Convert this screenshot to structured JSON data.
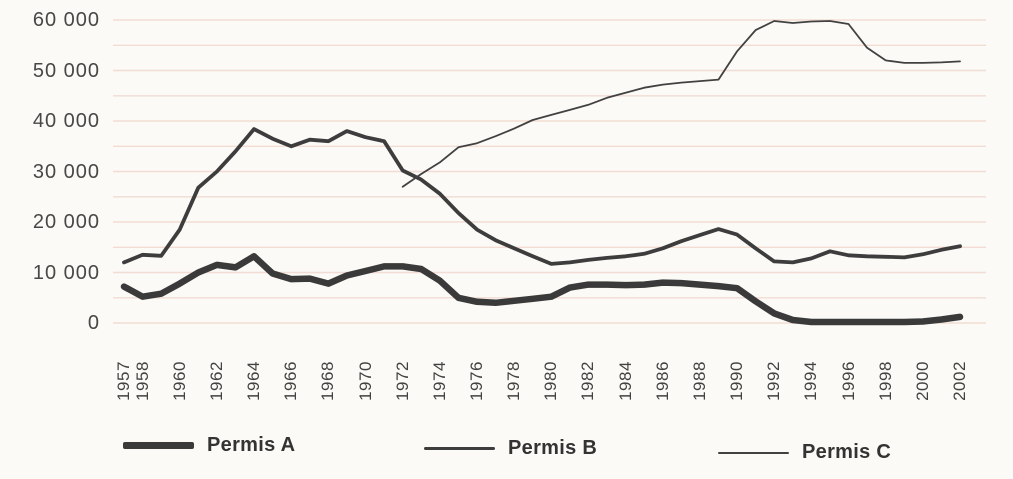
{
  "chart_data": {
    "type": "line",
    "title": "",
    "grid": true,
    "x_axis": {
      "first_year": 1957,
      "last_year": 2002,
      "tick_labels": [
        "1957",
        "1958",
        "1960",
        "1962",
        "1964",
        "1966",
        "1968",
        "1970",
        "1972",
        "1974",
        "1976",
        "1978",
        "1980",
        "1982",
        "1984",
        "1986",
        "1988",
        "1990",
        "1992",
        "1994",
        "1996",
        "1998",
        "2000",
        "2002"
      ]
    },
    "y_axis": {
      "min": 0,
      "max": 60000,
      "gridline_step": 5000,
      "ticks": [
        {
          "label": "60 000",
          "value": 60000
        },
        {
          "label": "50 000",
          "value": 50000
        },
        {
          "label": "40 000",
          "value": 40000
        },
        {
          "label": "30 000",
          "value": 30000
        },
        {
          "label": "20 000",
          "value": 20000
        },
        {
          "label": "10 000",
          "value": 10000
        },
        {
          "label": "0",
          "value": 0
        }
      ]
    },
    "legend": {
      "position": "bottom"
    },
    "series": [
      {
        "name": "Permis A",
        "color": "#3a3a3a",
        "line_width": 6.5,
        "years": [
          1957,
          1958,
          1959,
          1960,
          1961,
          1962,
          1963,
          1964,
          1965,
          1966,
          1967,
          1968,
          1969,
          1970,
          1971,
          1972,
          1973,
          1974,
          1975,
          1976,
          1977,
          1978,
          1979,
          1980,
          1981,
          1982,
          1983,
          1984,
          1985,
          1986,
          1987,
          1988,
          1989,
          1990,
          1991,
          1992,
          1993,
          1994,
          1995,
          1996,
          1997,
          1998,
          1999,
          2000,
          2001,
          2002
        ],
        "values": [
          7200,
          5200,
          5800,
          7800,
          10000,
          11500,
          11000,
          13200,
          9800,
          8700,
          8800,
          7800,
          9400,
          10300,
          11200,
          11200,
          10700,
          8400,
          5000,
          4200,
          4000,
          4400,
          4800,
          5200,
          7000,
          7600,
          7600,
          7500,
          7600,
          8000,
          7900,
          7600,
          7300,
          6900,
          4300,
          1900,
          600,
          200,
          200,
          200,
          200,
          200,
          200,
          300,
          700,
          1200
        ]
      },
      {
        "name": "Permis B",
        "color": "#3d3d3d",
        "line_width": 3.8,
        "years": [
          1957,
          1958,
          1959,
          1960,
          1961,
          1962,
          1963,
          1964,
          1965,
          1966,
          1967,
          1968,
          1969,
          1970,
          1971,
          1972,
          1973,
          1974,
          1975,
          1976,
          1977,
          1978,
          1979,
          1980,
          1981,
          1982,
          1983,
          1984,
          1985,
          1986,
          1987,
          1988,
          1989,
          1990,
          1991,
          1992,
          1993,
          1994,
          1995,
          1996,
          1997,
          1998,
          1999,
          2000,
          2001,
          2002
        ],
        "values": [
          12000,
          13500,
          13300,
          18500,
          26800,
          30000,
          34000,
          38400,
          36500,
          35000,
          36300,
          36000,
          38000,
          36800,
          36000,
          30200,
          28400,
          25600,
          21800,
          18500,
          16400,
          14800,
          13200,
          11700,
          12000,
          12500,
          12900,
          13200,
          13700,
          14800,
          16200,
          17400,
          18600,
          17500,
          14800,
          12200,
          12000,
          12800,
          14200,
          13400,
          13200,
          13100,
          13000,
          13600,
          14500,
          15200
        ]
      },
      {
        "name": "Permis C",
        "color": "#414141",
        "line_width": 1.8,
        "years": [
          1972,
          1973,
          1974,
          1975,
          1976,
          1977,
          1978,
          1979,
          1980,
          1981,
          1982,
          1983,
          1984,
          1985,
          1986,
          1987,
          1988,
          1989,
          1990,
          1991,
          1992,
          1993,
          1994,
          1995,
          1996,
          1997,
          1998,
          1999,
          2000,
          2001,
          2002
        ],
        "values": [
          27000,
          29500,
          31800,
          34800,
          35600,
          37000,
          38500,
          40200,
          41200,
          42200,
          43200,
          44600,
          45600,
          46600,
          47200,
          47600,
          47900,
          48200,
          53800,
          58000,
          59800,
          59400,
          59700,
          59800,
          59200,
          54500,
          52000,
          51500,
          51500,
          51600,
          51800
        ]
      }
    ]
  },
  "colors": {
    "background": "#fbfaf6",
    "gridline": "#f2dcd3",
    "line": "#3a3a3a",
    "text": "#474747"
  }
}
